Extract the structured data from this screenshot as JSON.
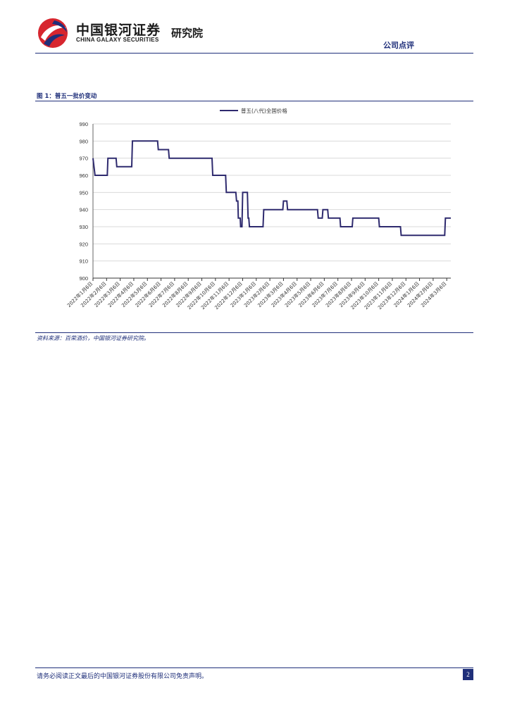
{
  "header": {
    "brand_cn": "中国银河证券",
    "brand_en": "CHINA GALAXY SECURITIES",
    "institute": "研究院",
    "report_type": "公司点评",
    "logo_icon": "galaxy-logo-icon",
    "brand_color": "#1f2f7a",
    "logo_red": "#d7262f"
  },
  "figure": {
    "title": "图 1：普五一批价变动",
    "source": "资料来源：百荣酒价，中国银河证券研究院。"
  },
  "chart_data": {
    "type": "line",
    "title": "",
    "xlabel": "",
    "ylabel": "",
    "ylim": [
      900,
      990
    ],
    "yticks": [
      900,
      910,
      920,
      930,
      940,
      950,
      960,
      970,
      980,
      990
    ],
    "grid": "horizontal",
    "legend_position": "top-center",
    "categories": [
      "2022年1月6日",
      "2022年2月6日",
      "2022年3月6日",
      "2022年4月6日",
      "2022年5月6日",
      "2022年6月6日",
      "2022年7月6日",
      "2022年8月6日",
      "2022年9月6日",
      "2022年10月6日",
      "2022年11月6日",
      "2022年12月6日",
      "2023年1月6日",
      "2023年2月6日",
      "2023年3月6日",
      "2023年4月6日",
      "2023年5月6日",
      "2023年6月6日",
      "2023年7月6日",
      "2023年8月6日",
      "2023年9月6日",
      "2023年10月6日",
      "2023年11月6日",
      "2023年12月6日",
      "2024年1月6日",
      "2024年2月6日",
      "2024年3月6日"
    ],
    "series": [
      {
        "name": "普五(八代)全国价格",
        "color": "#2e2a6e",
        "points": [
          [
            0.0,
            970
          ],
          [
            0.15,
            960
          ],
          [
            1.05,
            960
          ],
          [
            1.1,
            970
          ],
          [
            1.7,
            970
          ],
          [
            1.75,
            965
          ],
          [
            2.85,
            965
          ],
          [
            2.9,
            980
          ],
          [
            4.75,
            980
          ],
          [
            4.8,
            975
          ],
          [
            5.55,
            975
          ],
          [
            5.6,
            970
          ],
          [
            8.75,
            970
          ],
          [
            8.8,
            960
          ],
          [
            9.75,
            960
          ],
          [
            9.8,
            950
          ],
          [
            10.5,
            950
          ],
          [
            10.55,
            945
          ],
          [
            10.65,
            945
          ],
          [
            10.68,
            935
          ],
          [
            10.82,
            935
          ],
          [
            10.85,
            930
          ],
          [
            10.95,
            930
          ],
          [
            11.0,
            950
          ],
          [
            11.35,
            950
          ],
          [
            11.4,
            935
          ],
          [
            11.45,
            935
          ],
          [
            11.5,
            930
          ],
          [
            12.5,
            930
          ],
          [
            12.55,
            940
          ],
          [
            13.95,
            940
          ],
          [
            14.0,
            945
          ],
          [
            14.25,
            945
          ],
          [
            14.3,
            940
          ],
          [
            16.5,
            940
          ],
          [
            16.55,
            935
          ],
          [
            16.85,
            935
          ],
          [
            16.9,
            940
          ],
          [
            17.25,
            940
          ],
          [
            17.3,
            935
          ],
          [
            18.15,
            935
          ],
          [
            18.2,
            930
          ],
          [
            19.05,
            930
          ],
          [
            19.1,
            935
          ],
          [
            21.0,
            935
          ],
          [
            21.05,
            930
          ],
          [
            22.6,
            930
          ],
          [
            22.65,
            925
          ],
          [
            25.85,
            925
          ],
          [
            25.9,
            935
          ],
          [
            26.3,
            935
          ]
        ]
      }
    ]
  },
  "footer": {
    "disclaimer": "请务必阅读正文最后的中国银河证券股份有限公司免责声明。",
    "page_number": "2"
  }
}
